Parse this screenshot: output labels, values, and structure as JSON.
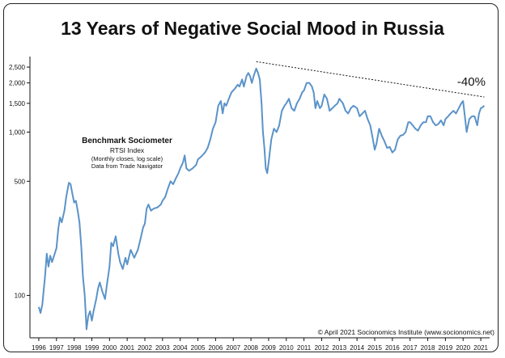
{
  "title": "13 Years of Negative Social Mood in Russia",
  "legend": {
    "heading": "Benchmark Sociometer",
    "line1": "RTSI Index",
    "line2": "(Monthly closes, log scale)",
    "line3": "Data from Trade Navigator"
  },
  "annotation_pct": "-40%",
  "copyright": "© April 2021 Socionomics Institute (www.socionomics.net)",
  "colors": {
    "series": "#5b93c9",
    "axis": "#111111",
    "trendline": "#111111"
  },
  "chart_data": {
    "type": "line",
    "title": "13 Years of Negative Social Mood in Russia",
    "yscale": "log",
    "ylim": [
      55,
      2900
    ],
    "xlim": [
      1995.5,
      2021.5
    ],
    "y_ticks": [
      100,
      500,
      1000,
      1500,
      2000,
      2500
    ],
    "y_tick_labels": [
      "100",
      "500",
      "1,000",
      "1,500",
      "2,000",
      "2,500"
    ],
    "x_ticks": [
      1996,
      1997,
      1998,
      1999,
      2000,
      2001,
      2002,
      2003,
      2004,
      2005,
      2006,
      2007,
      2008,
      2009,
      2010,
      2011,
      2012,
      2013,
      2014,
      2015,
      2016,
      2017,
      2018,
      2019,
      2020,
      2021
    ],
    "x_tick_labels": [
      "1996",
      "1997",
      "1998",
      "1999",
      "2000",
      "2001",
      "2002",
      "2003",
      "2004",
      "2005",
      "2006",
      "2007",
      "2008",
      "2009",
      "2010",
      "2011",
      "2012",
      "2013",
      "2014",
      "2015",
      "2016",
      "2017",
      "2018",
      "2019",
      "2020",
      "2021"
    ],
    "series": [
      {
        "values": [
          [
            1996.0,
            85
          ],
          [
            1996.1,
            78
          ],
          [
            1996.2,
            88
          ],
          [
            1996.35,
            130
          ],
          [
            1996.45,
            180
          ],
          [
            1996.55,
            150
          ],
          [
            1996.65,
            175
          ],
          [
            1996.75,
            160
          ],
          [
            1996.9,
            180
          ],
          [
            1997.0,
            195
          ],
          [
            1997.1,
            255
          ],
          [
            1997.2,
            300
          ],
          [
            1997.3,
            280
          ],
          [
            1997.45,
            330
          ],
          [
            1997.55,
            400
          ],
          [
            1997.7,
            490
          ],
          [
            1997.8,
            480
          ],
          [
            1997.9,
            420
          ],
          [
            1998.0,
            370
          ],
          [
            1998.1,
            380
          ],
          [
            1998.2,
            330
          ],
          [
            1998.3,
            280
          ],
          [
            1998.4,
            200
          ],
          [
            1998.5,
            130
          ],
          [
            1998.6,
            100
          ],
          [
            1998.7,
            62
          ],
          [
            1998.8,
            75
          ],
          [
            1998.9,
            80
          ],
          [
            1999.0,
            70
          ],
          [
            1999.1,
            80
          ],
          [
            1999.25,
            95
          ],
          [
            1999.35,
            110
          ],
          [
            1999.45,
            120
          ],
          [
            1999.6,
            105
          ],
          [
            1999.75,
            95
          ],
          [
            1999.85,
            115
          ],
          [
            2000.0,
            150
          ],
          [
            2000.1,
            210
          ],
          [
            2000.2,
            200
          ],
          [
            2000.35,
            230
          ],
          [
            2000.5,
            180
          ],
          [
            2000.6,
            160
          ],
          [
            2000.75,
            145
          ],
          [
            2000.9,
            170
          ],
          [
            2001.0,
            155
          ],
          [
            2001.2,
            190
          ],
          [
            2001.4,
            170
          ],
          [
            2001.6,
            190
          ],
          [
            2001.75,
            220
          ],
          [
            2001.9,
            260
          ],
          [
            2002.0,
            275
          ],
          [
            2002.1,
            340
          ],
          [
            2002.2,
            360
          ],
          [
            2002.35,
            330
          ],
          [
            2002.5,
            340
          ],
          [
            2002.7,
            345
          ],
          [
            2002.9,
            360
          ],
          [
            2003.0,
            380
          ],
          [
            2003.15,
            400
          ],
          [
            2003.3,
            450
          ],
          [
            2003.45,
            500
          ],
          [
            2003.6,
            480
          ],
          [
            2003.75,
            520
          ],
          [
            2003.9,
            560
          ],
          [
            2004.0,
            600
          ],
          [
            2004.15,
            650
          ],
          [
            2004.25,
            720
          ],
          [
            2004.35,
            600
          ],
          [
            2004.5,
            580
          ],
          [
            2004.7,
            600
          ],
          [
            2004.9,
            630
          ],
          [
            2005.0,
            680
          ],
          [
            2005.2,
            710
          ],
          [
            2005.4,
            750
          ],
          [
            2005.55,
            800
          ],
          [
            2005.7,
            900
          ],
          [
            2005.85,
            1050
          ],
          [
            2006.0,
            1150
          ],
          [
            2006.15,
            1450
          ],
          [
            2006.3,
            1550
          ],
          [
            2006.4,
            1300
          ],
          [
            2006.5,
            1500
          ],
          [
            2006.6,
            1450
          ],
          [
            2006.75,
            1600
          ],
          [
            2006.9,
            1750
          ],
          [
            2007.0,
            1800
          ],
          [
            2007.1,
            1850
          ],
          [
            2007.25,
            1950
          ],
          [
            2007.35,
            1900
          ],
          [
            2007.5,
            2100
          ],
          [
            2007.6,
            1900
          ],
          [
            2007.75,
            2200
          ],
          [
            2007.85,
            2300
          ],
          [
            2007.95,
            2200
          ],
          [
            2008.05,
            2000
          ],
          [
            2008.15,
            2200
          ],
          [
            2008.3,
            2450
          ],
          [
            2008.4,
            2300
          ],
          [
            2008.5,
            2100
          ],
          [
            2008.6,
            1500
          ],
          [
            2008.68,
            1000
          ],
          [
            2008.76,
            800
          ],
          [
            2008.84,
            600
          ],
          [
            2008.92,
            560
          ],
          [
            2009.0,
            650
          ],
          [
            2009.15,
            900
          ],
          [
            2009.3,
            1050
          ],
          [
            2009.45,
            1000
          ],
          [
            2009.6,
            1100
          ],
          [
            2009.75,
            1350
          ],
          [
            2009.9,
            1450
          ],
          [
            2010.0,
            1500
          ],
          [
            2010.15,
            1600
          ],
          [
            2010.3,
            1400
          ],
          [
            2010.45,
            1350
          ],
          [
            2010.6,
            1500
          ],
          [
            2010.75,
            1600
          ],
          [
            2010.9,
            1750
          ],
          [
            2011.0,
            1800
          ],
          [
            2011.15,
            2000
          ],
          [
            2011.3,
            2000
          ],
          [
            2011.45,
            1900
          ],
          [
            2011.55,
            1750
          ],
          [
            2011.65,
            1400
          ],
          [
            2011.75,
            1550
          ],
          [
            2011.9,
            1400
          ],
          [
            2012.0,
            1450
          ],
          [
            2012.15,
            1700
          ],
          [
            2012.3,
            1600
          ],
          [
            2012.45,
            1350
          ],
          [
            2012.6,
            1400
          ],
          [
            2012.75,
            1450
          ],
          [
            2012.9,
            1500
          ],
          [
            2013.0,
            1600
          ],
          [
            2013.2,
            1500
          ],
          [
            2013.35,
            1350
          ],
          [
            2013.5,
            1300
          ],
          [
            2013.65,
            1400
          ],
          [
            2013.8,
            1450
          ],
          [
            2014.0,
            1400
          ],
          [
            2014.15,
            1250
          ],
          [
            2014.3,
            1300
          ],
          [
            2014.45,
            1350
          ],
          [
            2014.6,
            1200
          ],
          [
            2014.75,
            1100
          ],
          [
            2014.9,
            900
          ],
          [
            2015.0,
            780
          ],
          [
            2015.1,
            850
          ],
          [
            2015.25,
            1050
          ],
          [
            2015.4,
            950
          ],
          [
            2015.55,
            880
          ],
          [
            2015.7,
            800
          ],
          [
            2015.85,
            810
          ],
          [
            2016.0,
            750
          ],
          [
            2016.15,
            780
          ],
          [
            2016.3,
            900
          ],
          [
            2016.45,
            950
          ],
          [
            2016.6,
            960
          ],
          [
            2016.75,
            1000
          ],
          [
            2016.9,
            1150
          ],
          [
            2017.0,
            1150
          ],
          [
            2017.15,
            1100
          ],
          [
            2017.3,
            1050
          ],
          [
            2017.45,
            1020
          ],
          [
            2017.6,
            1100
          ],
          [
            2017.75,
            1150
          ],
          [
            2017.9,
            1150
          ],
          [
            2018.0,
            1250
          ],
          [
            2018.15,
            1250
          ],
          [
            2018.3,
            1150
          ],
          [
            2018.45,
            1100
          ],
          [
            2018.6,
            1120
          ],
          [
            2018.75,
            1180
          ],
          [
            2018.9,
            1100
          ],
          [
            2019.0,
            1200
          ],
          [
            2019.15,
            1250
          ],
          [
            2019.3,
            1300
          ],
          [
            2019.45,
            1350
          ],
          [
            2019.6,
            1300
          ],
          [
            2019.75,
            1400
          ],
          [
            2019.9,
            1500
          ],
          [
            2020.0,
            1550
          ],
          [
            2020.1,
            1250
          ],
          [
            2020.2,
            1000
          ],
          [
            2020.35,
            1200
          ],
          [
            2020.5,
            1250
          ],
          [
            2020.65,
            1250
          ],
          [
            2020.8,
            1100
          ],
          [
            2020.9,
            1300
          ],
          [
            2021.0,
            1400
          ],
          [
            2021.1,
            1420
          ],
          [
            2021.2,
            1450
          ]
        ]
      }
    ],
    "trendline": {
      "points": [
        [
          2008.3,
          2700
        ],
        [
          2021.2,
          1640
        ]
      ],
      "label": "-40%"
    }
  }
}
